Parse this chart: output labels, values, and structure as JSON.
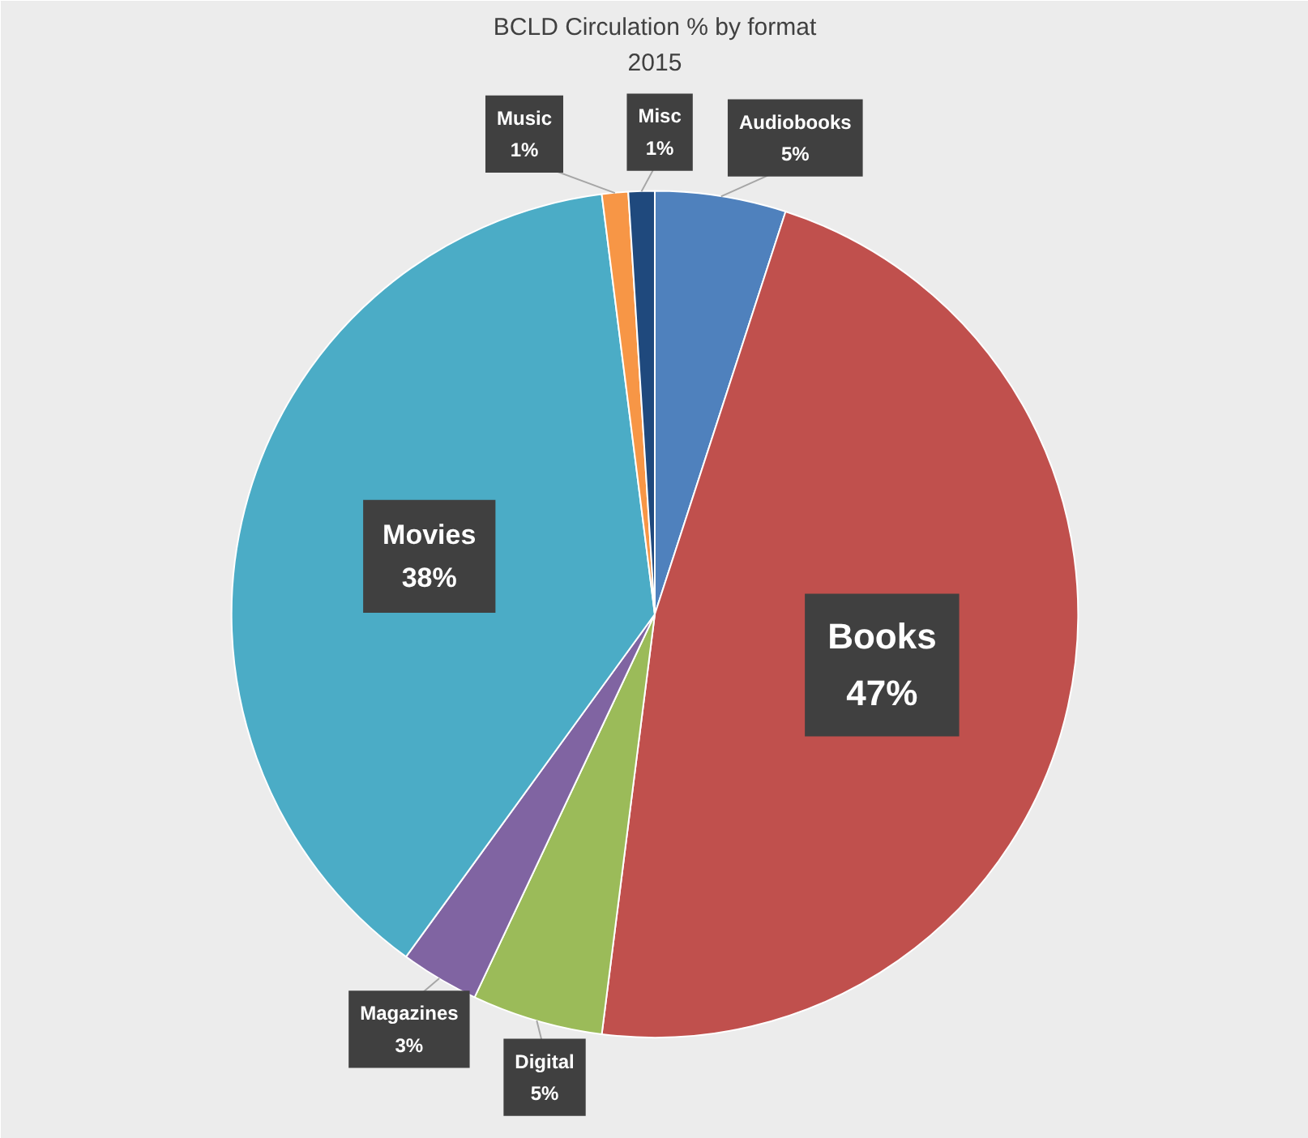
{
  "chart_data": {
    "type": "pie",
    "title": "BCLD Circulation % by format 2015",
    "categories": [
      "Audiobooks",
      "Books",
      "Digital",
      "Magazines",
      "Movies",
      "Music",
      "Misc"
    ],
    "values": [
      5,
      47,
      5,
      3,
      38,
      1,
      1
    ],
    "colors": [
      "#4f81bd",
      "#c0504d",
      "#9bbb59",
      "#8064a2",
      "#4bacc6",
      "#f79646",
      "#1f497d"
    ],
    "value_labels": [
      "5%",
      "47%",
      "5%",
      "3%",
      "38%",
      "1%",
      "1%"
    ]
  }
}
